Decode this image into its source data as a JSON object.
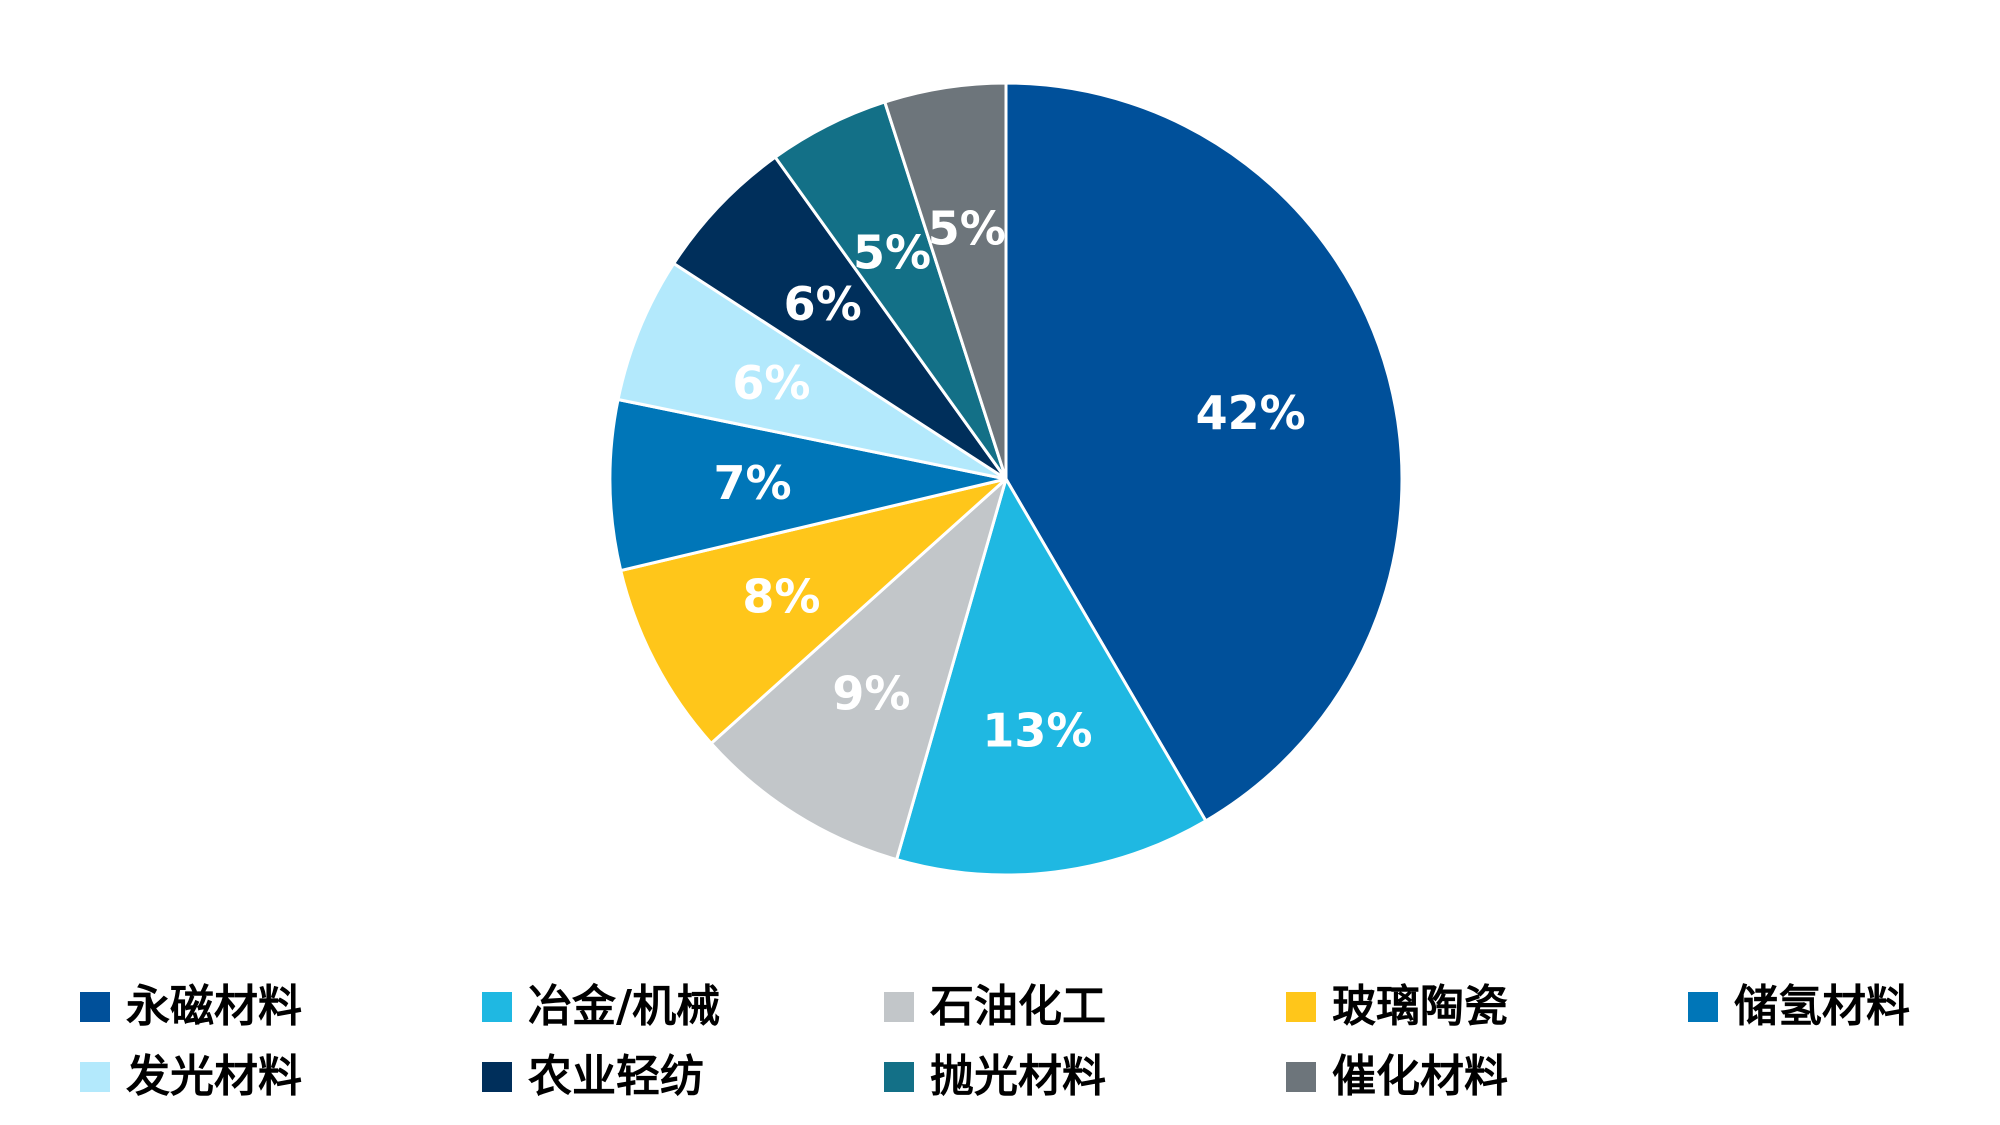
{
  "chart_data": {
    "type": "pie",
    "title": "",
    "start": "12 o'clock",
    "direction": "clockwise",
    "legend_position": "bottom",
    "slices": [
      {
        "label": "永磁材料",
        "value": 42,
        "value_label": "42%",
        "color": "#00509A",
        "label_color": "#FFFFFF"
      },
      {
        "label": "冶金/机械",
        "value": 13,
        "value_label": "13%",
        "color": "#1FB8E2",
        "label_color": "#FFFFFF"
      },
      {
        "label": "石油化工",
        "value": 9,
        "value_label": "9%",
        "color": "#C2C6C9",
        "label_color": "#FFFFFF"
      },
      {
        "label": "玻璃陶瓷",
        "value": 8,
        "value_label": "8%",
        "color": "#FFC61A",
        "label_color": "#FFFFFF"
      },
      {
        "label": "储氢材料",
        "value": 7,
        "value_label": "7%",
        "color": "#0076B8",
        "label_color": "#FFFFFF"
      },
      {
        "label": "发光材料",
        "value": 6,
        "value_label": "6%",
        "color": "#B3E9FC",
        "label_color": "#FFFFFF"
      },
      {
        "label": "农业轻纺",
        "value": 6,
        "value_label": "6%",
        "color": "#002F5B",
        "label_color": "#FFFFFF"
      },
      {
        "label": "抛光材料",
        "value": 5,
        "value_label": "5%",
        "color": "#137087",
        "label_color": "#FFFFFF"
      },
      {
        "label": "催化材料",
        "value": 5,
        "value_label": "5%",
        "color": "#6D757B",
        "label_color": "#FFFFFF"
      }
    ]
  }
}
